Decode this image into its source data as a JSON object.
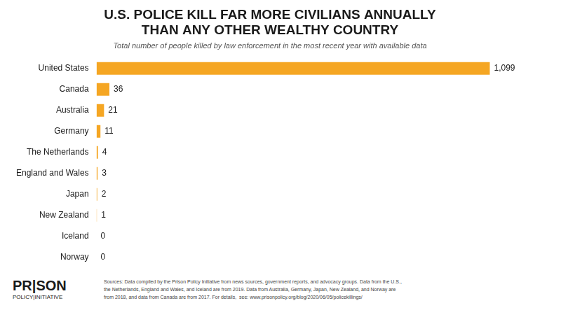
{
  "chart_data": {
    "type": "bar",
    "orientation": "horizontal",
    "title": [
      "U.S. POLICE KILL FAR MORE CIVILIANS ANNUALLY",
      "THAN ANY OTHER WEALTHY COUNTRY"
    ],
    "subtitle": "Total number of people killed by law enforcement in the most recent year with available data",
    "categories": [
      "United States",
      "Canada",
      "Australia",
      "Germany",
      "The Netherlands",
      "England and Wales",
      "Japan",
      "New Zealand",
      "Iceland",
      "Norway"
    ],
    "values": [
      1099,
      36,
      21,
      11,
      4,
      3,
      2,
      1,
      0,
      0
    ],
    "value_labels": [
      "1,099",
      "36",
      "21",
      "11",
      "4",
      "3",
      "2",
      "1",
      "0",
      "0"
    ],
    "color": "#F5A623",
    "xlim": [
      0,
      1200
    ],
    "data_labels": true,
    "tick_labels": "y",
    "grid": false,
    "annotations": [
      "PR|SON",
      "POLICY|INITIATIVE",
      "Sources: Data compiled by the Prison Policy Initiative from news sources, government reports, and advocacy groups. Data from the U.S.,\nthe Netherlands, England and Wales, and Iceland are from 2019. Data from Australia, Germany, Japan, New Zealand, and Norway are\nfrom 2018, and data from Canada are from 2017. For details,  see: www.prisonpolicy.org/blog/2020/06/05/policekillings/"
    ]
  }
}
